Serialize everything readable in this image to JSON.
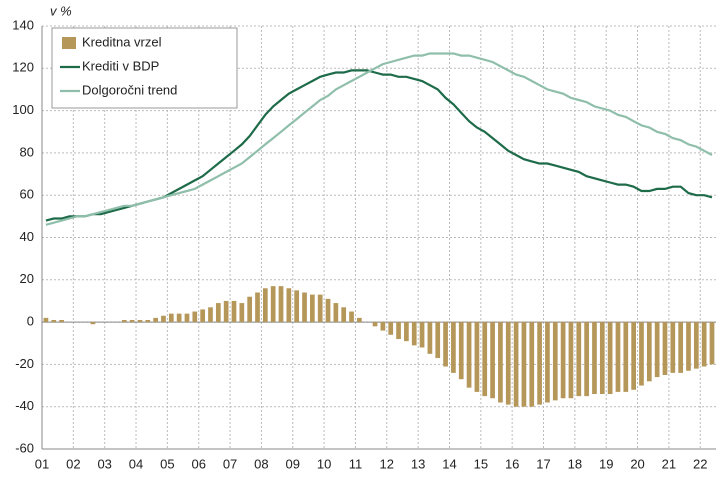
{
  "chart_data": {
    "type": "bar",
    "y_label": "v %",
    "categories": [
      "01",
      null,
      null,
      null,
      "02",
      null,
      null,
      null,
      "03",
      null,
      null,
      null,
      "04",
      null,
      null,
      null,
      "05",
      null,
      null,
      null,
      "06",
      null,
      null,
      null,
      "07",
      null,
      null,
      null,
      "08",
      null,
      null,
      null,
      "09",
      null,
      null,
      null,
      "10",
      null,
      null,
      null,
      "11",
      null,
      null,
      null,
      "12",
      null,
      null,
      null,
      "13",
      null,
      null,
      null,
      "14",
      null,
      null,
      null,
      "15",
      null,
      null,
      null,
      "16",
      null,
      null,
      null,
      "17",
      null,
      null,
      null,
      "18",
      null,
      null,
      null,
      "19",
      null,
      null,
      null,
      "20",
      null,
      null,
      null,
      "21",
      null,
      null,
      null,
      "22",
      null
    ],
    "series": [
      {
        "name": "Kreditna vrzel",
        "type": "bar",
        "color": "#b5975a",
        "values": [
          2,
          1,
          1,
          0,
          0,
          0,
          -1,
          0,
          0,
          0,
          1,
          1,
          1,
          1,
          2,
          3,
          4,
          4,
          4,
          5,
          6,
          7,
          9,
          10,
          10,
          9,
          12,
          14,
          16,
          17,
          17,
          16,
          15,
          14,
          13,
          13,
          11,
          9,
          7,
          5,
          2,
          0,
          -2,
          -4,
          -6,
          -8,
          -9,
          -11,
          -12,
          -15,
          -17,
          -21,
          -24,
          -27,
          -31,
          -33,
          -35,
          -36,
          -38,
          -39,
          -40,
          -40,
          -40,
          -39,
          -38,
          -37,
          -36,
          -36,
          -35,
          -35,
          -34,
          -34,
          -34,
          -33,
          -33,
          -32,
          -30,
          -28,
          -26,
          -25,
          -24,
          -24,
          -23,
          -22,
          -21,
          -20
        ]
      },
      {
        "name": "Krediti v BDP",
        "type": "line",
        "color": "#1e6b4a",
        "values": [
          48,
          49,
          49,
          50,
          50,
          50,
          51,
          51,
          52,
          53,
          54,
          55,
          56,
          57,
          58,
          59,
          61,
          63,
          65,
          67,
          69,
          72,
          75,
          78,
          81,
          84,
          88,
          93,
          98,
          102,
          105,
          108,
          110,
          112,
          114,
          116,
          117,
          118,
          118,
          119,
          119,
          119,
          118,
          117,
          117,
          116,
          116,
          115,
          114,
          112,
          110,
          106,
          103,
          99,
          95,
          92,
          90,
          87,
          84,
          81,
          79,
          77,
          76,
          75,
          75,
          74,
          73,
          72,
          71,
          69,
          68,
          67,
          66,
          65,
          65,
          64,
          62,
          62,
          63,
          63,
          64,
          64,
          61,
          60,
          60,
          59
        ]
      },
      {
        "name": "Dolgoročni trend",
        "type": "line",
        "color": "#8fbfaa",
        "values": [
          46,
          47,
          48,
          49,
          50,
          50,
          51,
          52,
          53,
          54,
          55,
          55,
          56,
          57,
          58,
          59,
          60,
          61,
          62,
          63,
          65,
          67,
          69,
          71,
          73,
          75,
          78,
          81,
          84,
          87,
          90,
          93,
          96,
          99,
          102,
          105,
          107,
          110,
          112,
          114,
          116,
          118,
          120,
          122,
          123,
          124,
          125,
          126,
          126,
          127,
          127,
          127,
          127,
          126,
          126,
          125,
          124,
          123,
          121,
          119,
          117,
          116,
          114,
          112,
          110,
          109,
          108,
          106,
          105,
          104,
          102,
          101,
          100,
          98,
          97,
          95,
          93,
          92,
          90,
          89,
          87,
          86,
          84,
          83,
          81,
          79
        ]
      }
    ],
    "ylim": [
      -60,
      140
    ],
    "yticks": [
      -60,
      -40,
      -20,
      0,
      20,
      40,
      60,
      80,
      100,
      120,
      140
    ],
    "grid": true,
    "legend": "top-left"
  }
}
